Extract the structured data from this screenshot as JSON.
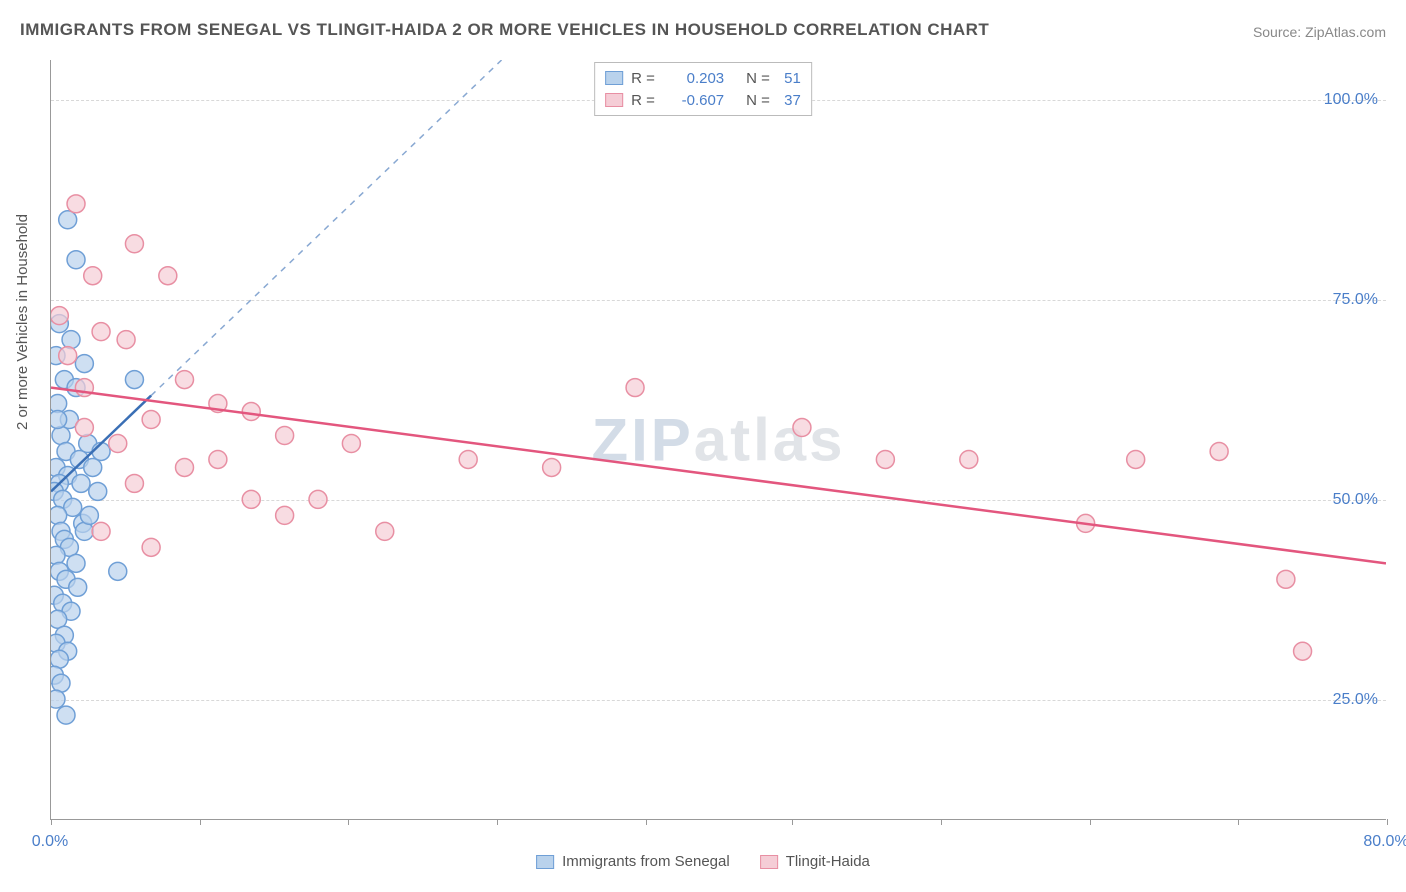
{
  "title": "IMMIGRANTS FROM SENEGAL VS TLINGIT-HAIDA 2 OR MORE VEHICLES IN HOUSEHOLD CORRELATION CHART",
  "source": "Source: ZipAtlas.com",
  "y_axis_label": "2 or more Vehicles in Household",
  "watermark_a": "ZIP",
  "watermark_b": "atlas",
  "chart": {
    "type": "scatter",
    "xlim": [
      0,
      80
    ],
    "ylim": [
      10,
      105
    ],
    "x_ticks": [
      0,
      80
    ],
    "x_tick_labels": [
      "0.0%",
      "80.0%"
    ],
    "x_minor_ticks": [
      8.9,
      17.8,
      26.7,
      35.6,
      44.4,
      53.3,
      62.2,
      71.1
    ],
    "y_ticks": [
      25,
      50,
      75,
      100
    ],
    "y_tick_labels": [
      "25.0%",
      "50.0%",
      "75.0%",
      "100.0%"
    ],
    "grid_color": "#d8d8d8",
    "background": "#ffffff",
    "point_radius": 9,
    "series": [
      {
        "name": "Immigrants from Senegal",
        "fill": "#b9d2ec",
        "stroke": "#6f9fd6",
        "line_color": "#3a6fb5",
        "R": "0.203",
        "N": "51",
        "trend": {
          "x1": 0,
          "y1": 51,
          "x2": 6,
          "y2": 63
        },
        "dashed_ext": {
          "x1": 6,
          "y1": 63,
          "x2": 27,
          "y2": 105
        },
        "points": [
          [
            1.0,
            85
          ],
          [
            1.5,
            80
          ],
          [
            0.5,
            72
          ],
          [
            1.2,
            70
          ],
          [
            0.3,
            68
          ],
          [
            2.0,
            67
          ],
          [
            0.8,
            65
          ],
          [
            1.5,
            64
          ],
          [
            5.0,
            65
          ],
          [
            0.4,
            62
          ],
          [
            1.1,
            60
          ],
          [
            0.6,
            58
          ],
          [
            2.2,
            57
          ],
          [
            0.9,
            56
          ],
          [
            1.7,
            55
          ],
          [
            0.3,
            54
          ],
          [
            2.5,
            54
          ],
          [
            1.0,
            53
          ],
          [
            0.5,
            52
          ],
          [
            1.8,
            52
          ],
          [
            0.2,
            51
          ],
          [
            0.7,
            50
          ],
          [
            2.8,
            51
          ],
          [
            1.3,
            49
          ],
          [
            0.4,
            48
          ],
          [
            1.9,
            47
          ],
          [
            0.6,
            46
          ],
          [
            2.0,
            46
          ],
          [
            0.8,
            45
          ],
          [
            1.1,
            44
          ],
          [
            0.3,
            43
          ],
          [
            1.5,
            42
          ],
          [
            0.5,
            41
          ],
          [
            4.0,
            41
          ],
          [
            0.9,
            40
          ],
          [
            1.6,
            39
          ],
          [
            0.2,
            38
          ],
          [
            0.7,
            37
          ],
          [
            1.2,
            36
          ],
          [
            0.4,
            35
          ],
          [
            0.8,
            33
          ],
          [
            0.3,
            32
          ],
          [
            1.0,
            31
          ],
          [
            0.5,
            30
          ],
          [
            0.2,
            28
          ],
          [
            0.6,
            27
          ],
          [
            0.3,
            25
          ],
          [
            0.9,
            23
          ],
          [
            0.4,
            60
          ],
          [
            2.3,
            48
          ],
          [
            3.0,
            56
          ]
        ]
      },
      {
        "name": "Tlingit-Haida",
        "fill": "#f5cdd6",
        "stroke": "#e88fa3",
        "line_color": "#e3567e",
        "R": "-0.607",
        "N": "37",
        "trend": {
          "x1": 0,
          "y1": 64,
          "x2": 80,
          "y2": 42
        },
        "points": [
          [
            1.5,
            87
          ],
          [
            5.0,
            82
          ],
          [
            2.5,
            78
          ],
          [
            7.0,
            78
          ],
          [
            0.5,
            73
          ],
          [
            3.0,
            71
          ],
          [
            4.5,
            70
          ],
          [
            1.0,
            68
          ],
          [
            8.0,
            65
          ],
          [
            2.0,
            64
          ],
          [
            10.0,
            62
          ],
          [
            12.0,
            61
          ],
          [
            6.0,
            60
          ],
          [
            14.0,
            58
          ],
          [
            4.0,
            57
          ],
          [
            18.0,
            57
          ],
          [
            10.0,
            55
          ],
          [
            8.0,
            54
          ],
          [
            25.0,
            55
          ],
          [
            5.0,
            52
          ],
          [
            30.0,
            54
          ],
          [
            12.0,
            50
          ],
          [
            16.0,
            50
          ],
          [
            14.0,
            48
          ],
          [
            35.0,
            64
          ],
          [
            3.0,
            46
          ],
          [
            45.0,
            59
          ],
          [
            6.0,
            44
          ],
          [
            50.0,
            55
          ],
          [
            55.0,
            55
          ],
          [
            62.0,
            47
          ],
          [
            65.0,
            55
          ],
          [
            70.0,
            56
          ],
          [
            74.0,
            40
          ],
          [
            75.0,
            31
          ],
          [
            2.0,
            59
          ],
          [
            20.0,
            46
          ]
        ]
      }
    ]
  },
  "legend_bottom": [
    {
      "label": "Immigrants from Senegal",
      "fill": "#b9d2ec",
      "stroke": "#6f9fd6"
    },
    {
      "label": "Tlingit-Haida",
      "fill": "#f5cdd6",
      "stroke": "#e88fa3"
    }
  ]
}
